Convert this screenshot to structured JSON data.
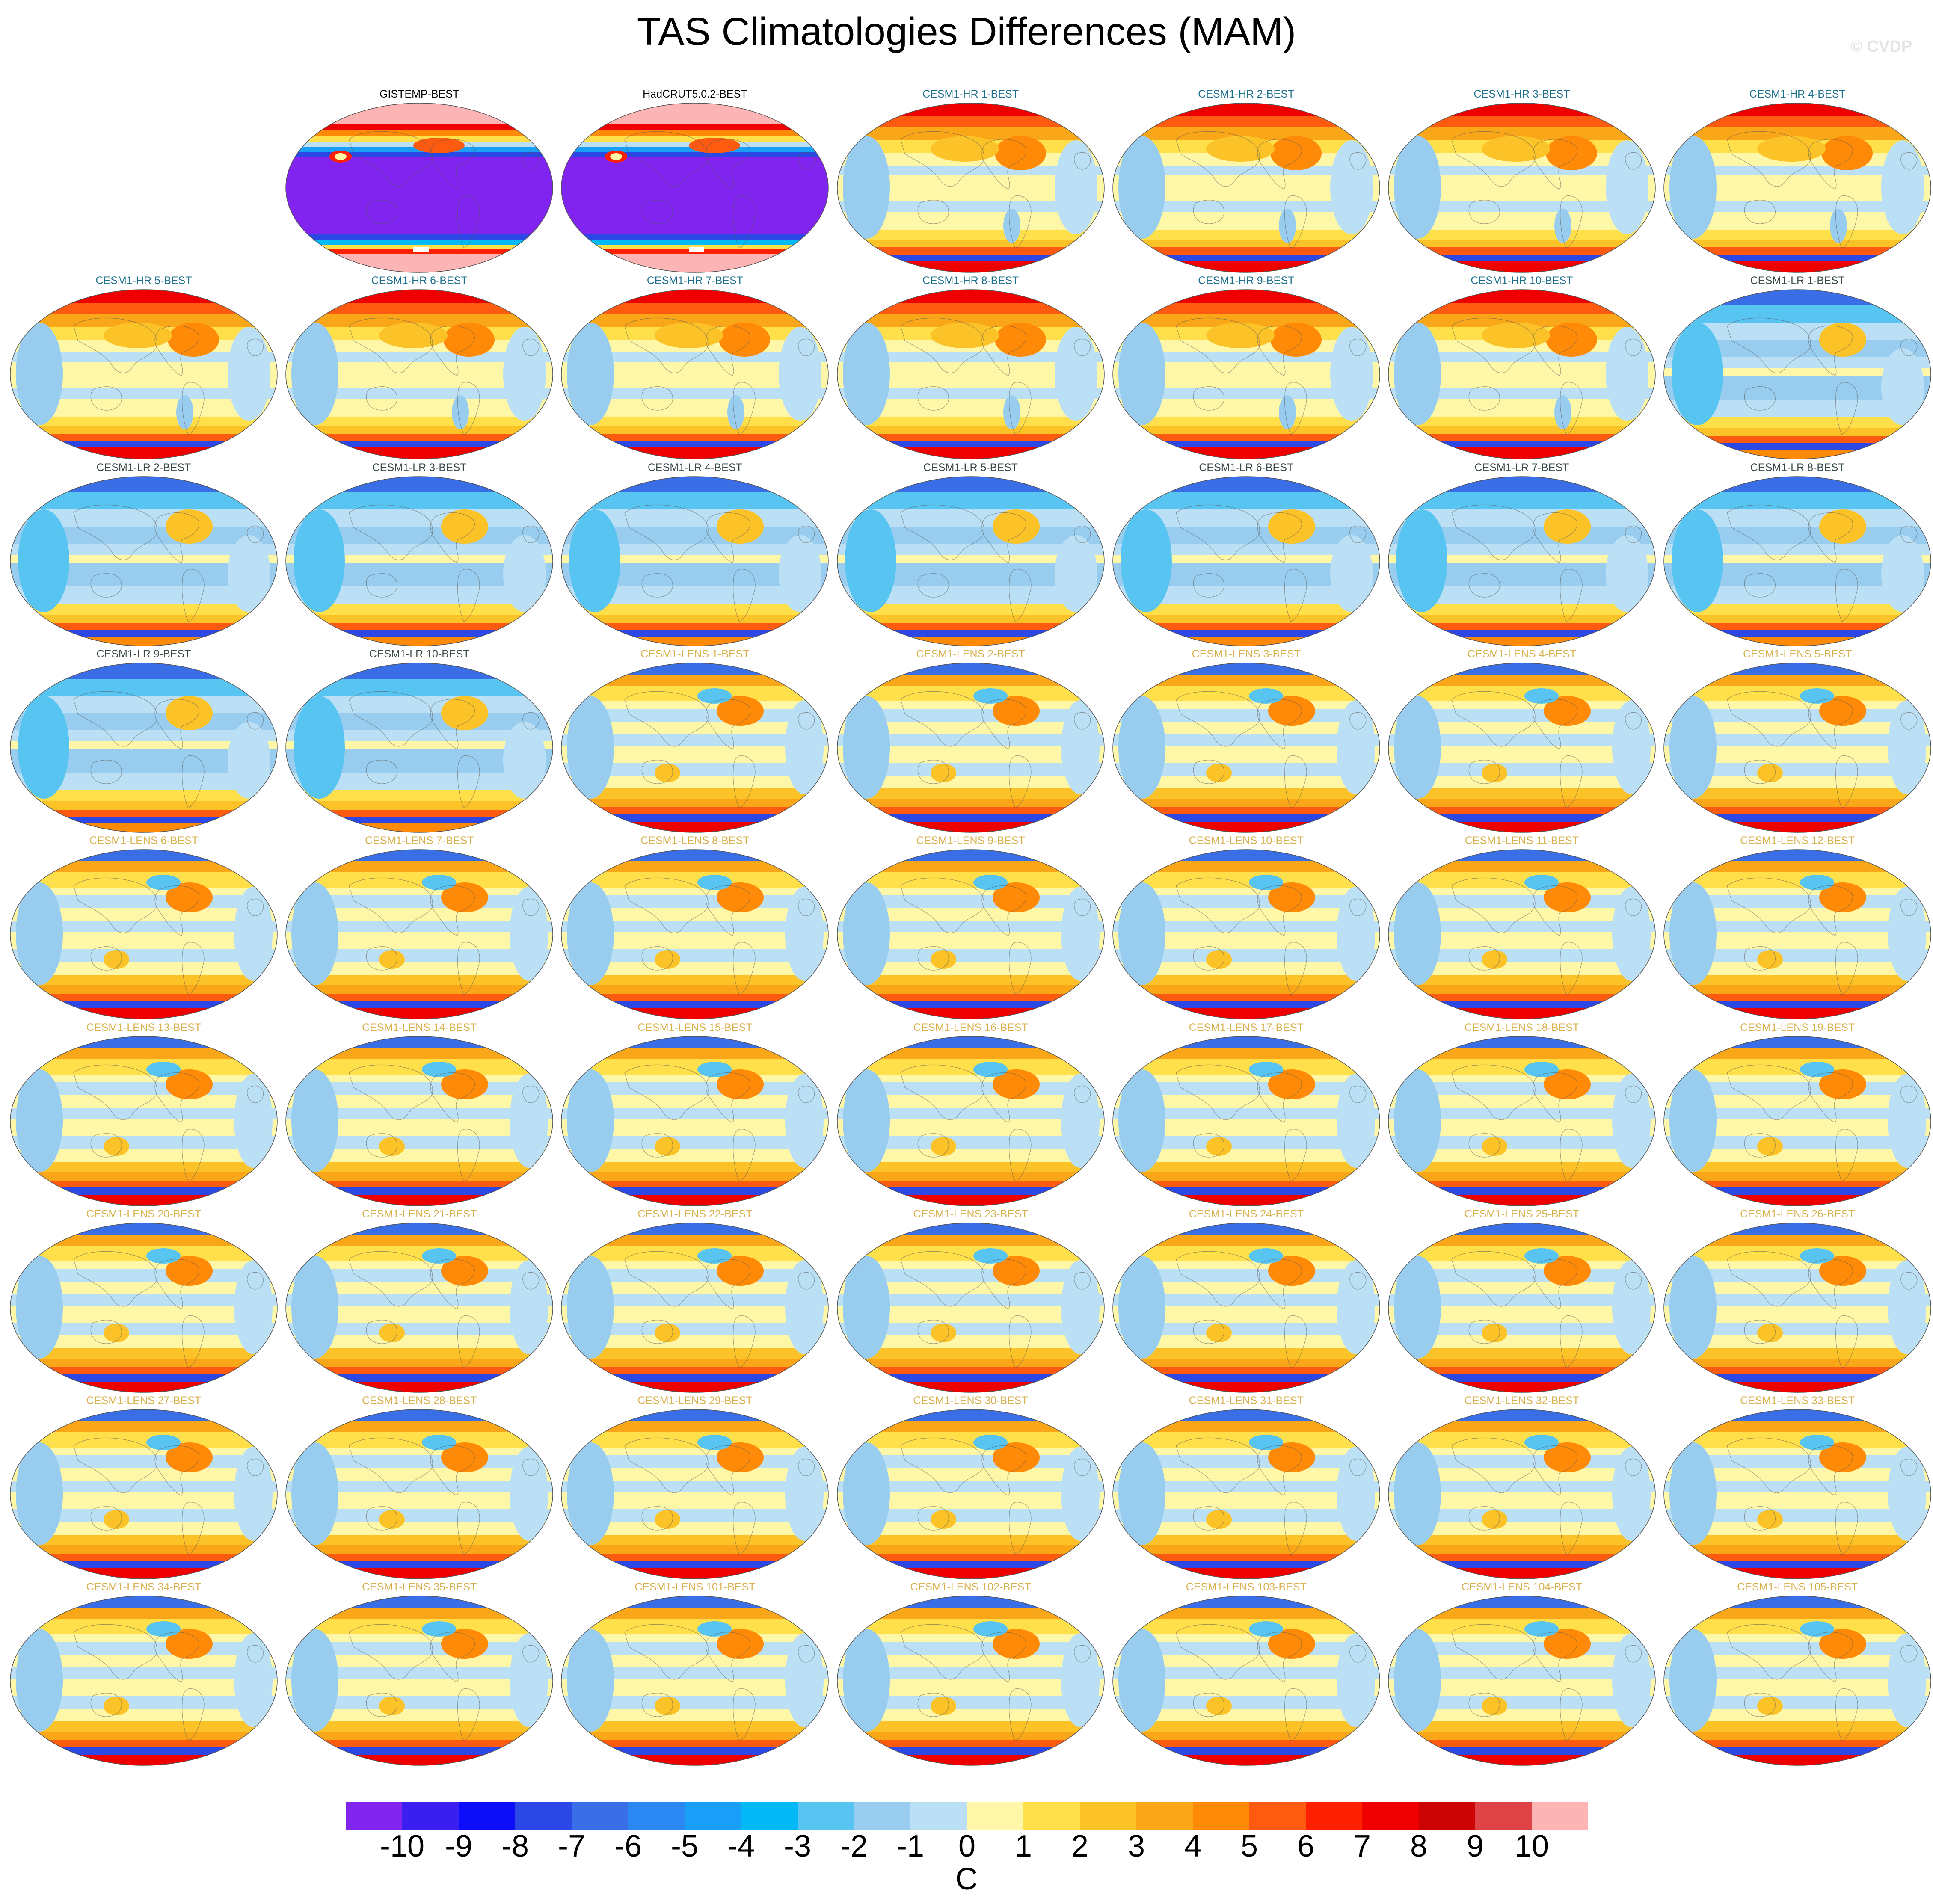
{
  "title": "TAS Climatologies Differences (MAM)",
  "watermark": "© CVDP",
  "label_colors": {
    "obs": "#000000",
    "hr": "#1c6f8c",
    "lr": "#3a4a4a",
    "lens": "#d8b04c"
  },
  "panels": [
    {
      "label": "GISTEMP-BEST",
      "group": "obs",
      "style": "obs"
    },
    {
      "label": "HadCRUT5.0.2-BEST",
      "group": "obs",
      "style": "obs"
    },
    {
      "label": "CESM1-HR 1-BEST",
      "group": "hr",
      "style": "warm"
    },
    {
      "label": "CESM1-HR 2-BEST",
      "group": "hr",
      "style": "warm"
    },
    {
      "label": "CESM1-HR 3-BEST",
      "group": "hr",
      "style": "warm"
    },
    {
      "label": "CESM1-HR 4-BEST",
      "group": "hr",
      "style": "warm"
    },
    {
      "label": "CESM1-HR 5-BEST",
      "group": "hr",
      "style": "warm"
    },
    {
      "label": "CESM1-HR 6-BEST",
      "group": "hr",
      "style": "warm"
    },
    {
      "label": "CESM1-HR 7-BEST",
      "group": "hr",
      "style": "warm"
    },
    {
      "label": "CESM1-HR 8-BEST",
      "group": "hr",
      "style": "warm"
    },
    {
      "label": "CESM1-HR 9-BEST",
      "group": "hr",
      "style": "warm"
    },
    {
      "label": "CESM1-HR 10-BEST",
      "group": "hr",
      "style": "warm"
    },
    {
      "label": "CESM1-LR 1-BEST",
      "group": "lr",
      "style": "cool"
    },
    {
      "label": "CESM1-LR 2-BEST",
      "group": "lr",
      "style": "cool"
    },
    {
      "label": "CESM1-LR 3-BEST",
      "group": "lr",
      "style": "cool"
    },
    {
      "label": "CESM1-LR 4-BEST",
      "group": "lr",
      "style": "cool"
    },
    {
      "label": "CESM1-LR 5-BEST",
      "group": "lr",
      "style": "cool"
    },
    {
      "label": "CESM1-LR 6-BEST",
      "group": "lr",
      "style": "cool"
    },
    {
      "label": "CESM1-LR 7-BEST",
      "group": "lr",
      "style": "cool"
    },
    {
      "label": "CESM1-LR 8-BEST",
      "group": "lr",
      "style": "cool"
    },
    {
      "label": "CESM1-LR 9-BEST",
      "group": "lr",
      "style": "cool"
    },
    {
      "label": "CESM1-LR 10-BEST",
      "group": "lr",
      "style": "cool"
    },
    {
      "label": "CESM1-LENS 1-BEST",
      "group": "lens",
      "style": "mixed"
    },
    {
      "label": "CESM1-LENS 2-BEST",
      "group": "lens",
      "style": "mixed"
    },
    {
      "label": "CESM1-LENS 3-BEST",
      "group": "lens",
      "style": "mixed"
    },
    {
      "label": "CESM1-LENS 4-BEST",
      "group": "lens",
      "style": "mixed"
    },
    {
      "label": "CESM1-LENS 5-BEST",
      "group": "lens",
      "style": "mixed"
    },
    {
      "label": "CESM1-LENS 6-BEST",
      "group": "lens",
      "style": "mixed"
    },
    {
      "label": "CESM1-LENS 7-BEST",
      "group": "lens",
      "style": "mixed"
    },
    {
      "label": "CESM1-LENS 8-BEST",
      "group": "lens",
      "style": "mixed"
    },
    {
      "label": "CESM1-LENS 9-BEST",
      "group": "lens",
      "style": "mixed"
    },
    {
      "label": "CESM1-LENS 10-BEST",
      "group": "lens",
      "style": "mixed"
    },
    {
      "label": "CESM1-LENS 11-BEST",
      "group": "lens",
      "style": "mixed"
    },
    {
      "label": "CESM1-LENS 12-BEST",
      "group": "lens",
      "style": "mixed"
    },
    {
      "label": "CESM1-LENS 13-BEST",
      "group": "lens",
      "style": "mixed"
    },
    {
      "label": "CESM1-LENS 14-BEST",
      "group": "lens",
      "style": "mixed"
    },
    {
      "label": "CESM1-LENS 15-BEST",
      "group": "lens",
      "style": "mixed"
    },
    {
      "label": "CESM1-LENS 16-BEST",
      "group": "lens",
      "style": "mixed"
    },
    {
      "label": "CESM1-LENS 17-BEST",
      "group": "lens",
      "style": "mixed"
    },
    {
      "label": "CESM1-LENS 18-BEST",
      "group": "lens",
      "style": "mixed"
    },
    {
      "label": "CESM1-LENS 19-BEST",
      "group": "lens",
      "style": "mixed"
    },
    {
      "label": "CESM1-LENS 20-BEST",
      "group": "lens",
      "style": "mixed"
    },
    {
      "label": "CESM1-LENS 21-BEST",
      "group": "lens",
      "style": "mixed"
    },
    {
      "label": "CESM1-LENS 22-BEST",
      "group": "lens",
      "style": "mixed"
    },
    {
      "label": "CESM1-LENS 23-BEST",
      "group": "lens",
      "style": "mixed"
    },
    {
      "label": "CESM1-LENS 24-BEST",
      "group": "lens",
      "style": "mixed"
    },
    {
      "label": "CESM1-LENS 25-BEST",
      "group": "lens",
      "style": "mixed"
    },
    {
      "label": "CESM1-LENS 26-BEST",
      "group": "lens",
      "style": "mixed"
    },
    {
      "label": "CESM1-LENS 27-BEST",
      "group": "lens",
      "style": "mixed"
    },
    {
      "label": "CESM1-LENS 28-BEST",
      "group": "lens",
      "style": "mixed"
    },
    {
      "label": "CESM1-LENS 29-BEST",
      "group": "lens",
      "style": "mixed"
    },
    {
      "label": "CESM1-LENS 30-BEST",
      "group": "lens",
      "style": "mixed"
    },
    {
      "label": "CESM1-LENS 31-BEST",
      "group": "lens",
      "style": "mixed"
    },
    {
      "label": "CESM1-LENS 32-BEST",
      "group": "lens",
      "style": "mixed"
    },
    {
      "label": "CESM1-LENS 33-BEST",
      "group": "lens",
      "style": "mixed"
    },
    {
      "label": "CESM1-LENS 34-BEST",
      "group": "lens",
      "style": "mixed"
    },
    {
      "label": "CESM1-LENS 35-BEST",
      "group": "lens",
      "style": "mixed"
    },
    {
      "label": "CESM1-LENS 101-BEST",
      "group": "lens",
      "style": "mixed"
    },
    {
      "label": "CESM1-LENS 102-BEST",
      "group": "lens",
      "style": "mixed"
    },
    {
      "label": "CESM1-LENS 103-BEST",
      "group": "lens",
      "style": "mixed"
    },
    {
      "label": "CESM1-LENS 104-BEST",
      "group": "lens",
      "style": "mixed"
    },
    {
      "label": "CESM1-LENS 105-BEST",
      "group": "lens",
      "style": "mixed"
    }
  ],
  "colorbar": {
    "units": "C",
    "tick_labels": [
      "-10",
      "-9",
      "-8",
      "-7",
      "-6",
      "-5",
      "-4",
      "-3",
      "-2",
      "-1",
      "0",
      "1",
      "2",
      "3",
      "4",
      "5",
      "6",
      "7",
      "8",
      "9",
      "10"
    ],
    "colors": [
      "#8224f0",
      "#3b1ef0",
      "#0d0dfa",
      "#2b48e6",
      "#3a6ee6",
      "#2a88f5",
      "#199ff7",
      "#03b9f7",
      "#58c4f2",
      "#98cdef",
      "#bbe0f5",
      "#fff7a8",
      "#ffe04a",
      "#fbc327",
      "#f9a619",
      "#ff8a08",
      "#ff5b10",
      "#ff2000",
      "#ee0000",
      "#cd0404",
      "#de4445",
      "#fdb4b4"
    ]
  }
}
